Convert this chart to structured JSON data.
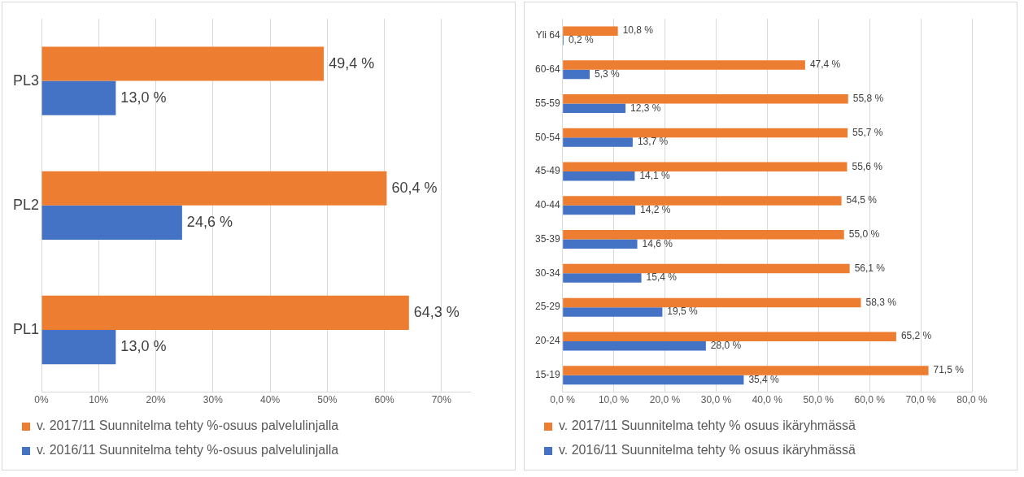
{
  "chart_data": [
    {
      "type": "bar",
      "orientation": "horizontal",
      "categories": [
        "PL3",
        "PL2",
        "PL1"
      ],
      "series": [
        {
          "name": "v. 2017/11 Suunnitelma tehty %-osuus palvelulinjalla",
          "color": "#ed7d31",
          "values": [
            49.4,
            60.4,
            64.3
          ],
          "value_labels": [
            "49,4 %",
            "60,4 %",
            "64,3 %"
          ]
        },
        {
          "name": "v. 2016/11 Suunnitelma tehty %-osuus palvelulinjalla",
          "color": "#4472c4",
          "values": [
            13.0,
            24.6,
            13.0
          ],
          "value_labels": [
            "13,0 %",
            "24,6 %",
            "13,0 %"
          ]
        }
      ],
      "xlim": [
        0,
        75
      ],
      "xticks": [
        {
          "value": 0,
          "label": "0%"
        },
        {
          "value": 10,
          "label": "10%"
        },
        {
          "value": 20,
          "label": "20%"
        },
        {
          "value": 30,
          "label": "30%"
        },
        {
          "value": 40,
          "label": "40%"
        },
        {
          "value": 50,
          "label": "50%"
        },
        {
          "value": 60,
          "label": "60%"
        },
        {
          "value": 70,
          "label": "70%"
        }
      ],
      "grid": "x",
      "legend": "bottom"
    },
    {
      "type": "bar",
      "orientation": "horizontal",
      "categories": [
        "Yli 64",
        "60-64",
        "55-59",
        "50-54",
        "45-49",
        "40-44",
        "35-39",
        "30-34",
        "25-29",
        "20-24",
        "15-19"
      ],
      "series": [
        {
          "name": "v. 2017/11 Suunnitelma tehty % osuus ikäryhmässä",
          "color": "#ed7d31",
          "values": [
            10.8,
            47.4,
            55.8,
            55.7,
            55.6,
            54.5,
            55.0,
            56.1,
            58.3,
            65.2,
            71.5
          ],
          "value_labels": [
            "10,8 %",
            "47,4 %",
            "55,8 %",
            "55,7 %",
            "55,6 %",
            "54,5 %",
            "55,0 %",
            "56,1 %",
            "58,3 %",
            "65,2 %",
            "71,5 %"
          ]
        },
        {
          "name": "v. 2016/11 Suunnitelma tehty % osuus ikäryhmässä",
          "color": "#4472c4",
          "values": [
            0.2,
            5.3,
            12.3,
            13.7,
            14.1,
            14.2,
            14.6,
            15.4,
            19.5,
            28.0,
            35.4
          ],
          "value_labels": [
            "0,2 %",
            "5,3 %",
            "12,3 %",
            "13,7 %",
            "14,1 %",
            "14,2 %",
            "14,6 %",
            "15,4 %",
            "19,5 %",
            "28,0 %",
            "35,4 %"
          ]
        }
      ],
      "xlim": [
        0,
        80
      ],
      "xticks": [
        {
          "value": 0,
          "label": "0,0 %"
        },
        {
          "value": 10,
          "label": "10,0 %"
        },
        {
          "value": 20,
          "label": "20,0 %"
        },
        {
          "value": 30,
          "label": "30,0 %"
        },
        {
          "value": 40,
          "label": "40,0 %"
        },
        {
          "value": 50,
          "label": "50,0 %"
        },
        {
          "value": 60,
          "label": "60,0 %"
        },
        {
          "value": 70,
          "label": "70,0 %"
        },
        {
          "value": 80,
          "label": "80,0 %"
        }
      ],
      "grid": "x",
      "legend": "bottom"
    }
  ]
}
